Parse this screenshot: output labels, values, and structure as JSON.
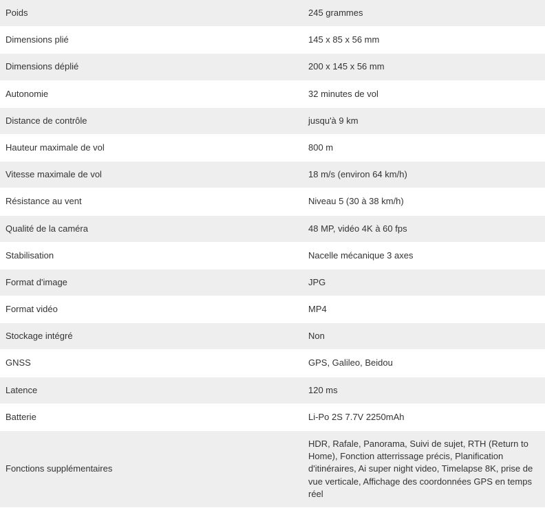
{
  "specs": [
    {
      "label": "Poids",
      "value": "245 grammes"
    },
    {
      "label": "Dimensions plié",
      "value": "145 x 85 x 56 mm"
    },
    {
      "label": "Dimensions déplié",
      "value": "200 x 145 x 56 mm"
    },
    {
      "label": "Autonomie",
      "value": "32 minutes de vol"
    },
    {
      "label": "Distance de contrôle",
      "value": "jusqu'à 9 km"
    },
    {
      "label": "Hauteur maximale de vol",
      "value": "800 m"
    },
    {
      "label": "Vitesse maximale de vol",
      "value": "18 m/s (environ 64 km/h)"
    },
    {
      "label": "Résistance au vent",
      "value": "Niveau 5 (30 à 38 km/h)"
    },
    {
      "label": "Qualité de la caméra",
      "value": "48 MP, vidéo 4K à 60 fps"
    },
    {
      "label": "Stabilisation",
      "value": "Nacelle mécanique 3 axes"
    },
    {
      "label": "Format d'image",
      "value": "JPG"
    },
    {
      "label": "Format vidéo",
      "value": "MP4"
    },
    {
      "label": "Stockage intégré",
      "value": "Non"
    },
    {
      "label": "GNSS",
      "value": "GPS, Galileo, Beidou"
    },
    {
      "label": "Latence",
      "value": "120 ms"
    },
    {
      "label": "Batterie",
      "value": "Li-Po 2S 7.7V 2250mAh"
    },
    {
      "label": "Fonctions supplémentaires",
      "value": "HDR, Rafale, Panorama, Suivi de sujet, RTH (Return to Home), Fonction atterrissage précis, Planification d'itinéraires, Ai super night video, Timelapse 8K, prise de vue verticale, Affichage des coordonnées GPS en temps réel"
    }
  ],
  "colors": {
    "odd_row_bg": "#eeeeee",
    "even_row_bg": "#ffffff",
    "text": "#333333"
  }
}
